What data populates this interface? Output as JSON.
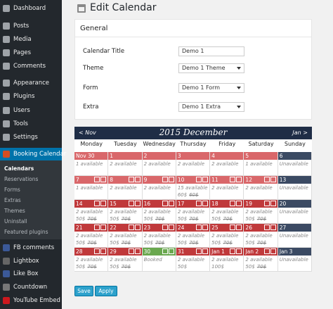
{
  "sidebar": {
    "menu": [
      "Dashboard",
      "Posts",
      "Media",
      "Pages",
      "Comments",
      "Appearance",
      "Plugins",
      "Users",
      "Tools",
      "Settings",
      "Booking Calendar"
    ],
    "submenu": [
      "Calendars",
      "Reservations",
      "Forms",
      "Extras",
      "Themes",
      "Uninstall",
      "Featured plugins"
    ],
    "plugins": [
      "FB comments",
      "Lightbox",
      "Like Box",
      "Countdown",
      "YouTube Embed"
    ]
  },
  "header": {
    "title": "Edit Calendar"
  },
  "form": {
    "section": "General",
    "fields": [
      {
        "label": "Calendar Title",
        "value": "Demo 1"
      },
      {
        "label": "Theme",
        "value": "Demo 1 Theme"
      },
      {
        "label": "Form",
        "value": "Demo 1 Form"
      },
      {
        "label": "Extra",
        "value": "Demo 1 Extra"
      }
    ]
  },
  "calendar": {
    "prev": "< Nov",
    "title": "2015 December",
    "next": "Jan >",
    "weekdays": [
      "Monday",
      "Tuesday",
      "Wednesday",
      "Thursday",
      "Friday",
      "Saturday",
      "Sunday"
    ],
    "weeks": [
      [
        {
          "day": "Nov 30",
          "status": "1 available"
        },
        {
          "day": "1",
          "status": "2 available"
        },
        {
          "day": "2",
          "status": "2 available"
        },
        {
          "day": "3",
          "status": "2 available"
        },
        {
          "day": "4",
          "status": "2 available"
        },
        {
          "day": "5",
          "status": "1 available"
        },
        {
          "day": "6",
          "status": "Unavailable"
        }
      ],
      [
        {
          "day": "7",
          "status": "1 available"
        },
        {
          "day": "8",
          "status": "2 available"
        },
        {
          "day": "9",
          "status": "2 available"
        },
        {
          "day": "10",
          "status": "15 available",
          "price": "60$",
          "old_price": "60$"
        },
        {
          "day": "11",
          "status": "2 available"
        },
        {
          "day": "12",
          "status": "2 available"
        },
        {
          "day": "13",
          "status": "Unavailable"
        }
      ],
      [
        {
          "day": "14",
          "status": "2 available",
          "price": "50$",
          "old_price": "70$"
        },
        {
          "day": "15",
          "status": "2 available",
          "price": "50$",
          "old_price": "70$"
        },
        {
          "day": "16",
          "status": "2 available",
          "price": "50$",
          "old_price": "70$"
        },
        {
          "day": "17",
          "status": "2 available",
          "price": "50$",
          "old_price": "70$"
        },
        {
          "day": "18",
          "status": "2 available",
          "price": "50$",
          "old_price": "70$"
        },
        {
          "day": "19",
          "status": "2 available",
          "price": "50$",
          "old_price": "70$"
        },
        {
          "day": "20",
          "status": "Unavailable"
        }
      ],
      [
        {
          "day": "21",
          "status": "2 available",
          "price": "50$",
          "old_price": "70$"
        },
        {
          "day": "22",
          "status": "2 available",
          "price": "50$",
          "old_price": "70$"
        },
        {
          "day": "23",
          "status": "2 available",
          "price": "50$",
          "old_price": "70$"
        },
        {
          "day": "24",
          "status": "2 available",
          "price": "50$",
          "old_price": "70$"
        },
        {
          "day": "25",
          "status": "2 available",
          "price": "50$",
          "old_price": "70$"
        },
        {
          "day": "26",
          "status": "2 available",
          "price": "50$",
          "old_price": "70$"
        },
        {
          "day": "27",
          "status": "Unavailable"
        }
      ],
      [
        {
          "day": "28",
          "status": "2 available",
          "price": "50$",
          "old_price": "70$"
        },
        {
          "day": "29",
          "status": "2 available",
          "price": "50$",
          "old_price": "70$"
        },
        {
          "day": "30",
          "status": "Booked"
        },
        {
          "day": "31",
          "status": "2 available",
          "price": "50$"
        },
        {
          "day": "Jan 1",
          "status": "2 available",
          "price": "100$"
        },
        {
          "day": "Jan 2",
          "status": "2 available",
          "price": "50$",
          "old_price": "70$"
        },
        {
          "day": "Jan 3",
          "status": "Unavailable"
        }
      ]
    ]
  },
  "buttons": [
    "Save",
    "Apply"
  ]
}
